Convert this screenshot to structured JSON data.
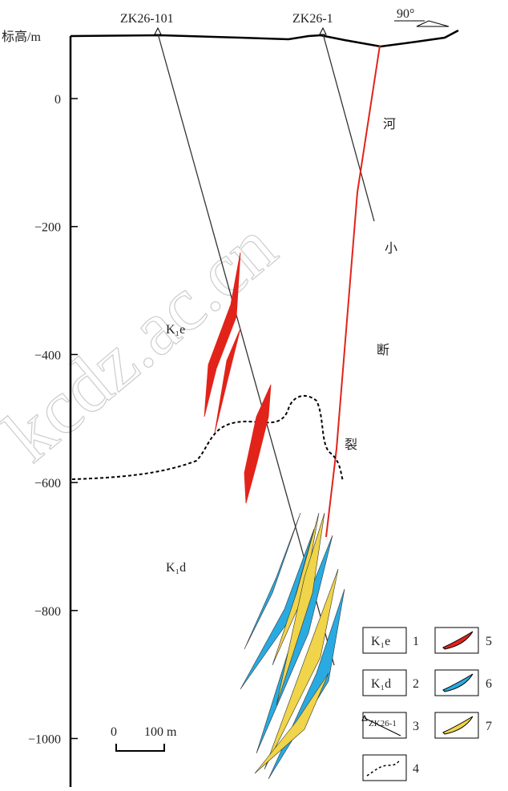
{
  "axis": {
    "label": "标高/m",
    "ticks": [
      {
        "value": 0,
        "label": "0"
      },
      {
        "value": -200,
        "label": "−200"
      },
      {
        "value": -400,
        "label": "−400"
      },
      {
        "value": -600,
        "label": "−600"
      },
      {
        "value": -800,
        "label": "−800"
      },
      {
        "value": -1000,
        "label": "−1000"
      }
    ]
  },
  "drill_holes": [
    "ZK26-101",
    "ZK26-1"
  ],
  "orientation": "90°",
  "fault_label": [
    "河",
    "小",
    "断",
    "裂"
  ],
  "units": [
    "K₁e",
    "K₁d"
  ],
  "scale_bar": {
    "start": "0",
    "end": "100 m"
  },
  "watermark": "kcdz.ac.cn",
  "legend": [
    {
      "symbol": "K₁e",
      "number": "1"
    },
    {
      "symbol": "K₁d",
      "number": "2"
    },
    {
      "symbol": "ZK26-1",
      "number": "3"
    },
    {
      "number": "4"
    },
    {
      "number": "5"
    },
    {
      "number": "6"
    },
    {
      "number": "7"
    }
  ]
}
